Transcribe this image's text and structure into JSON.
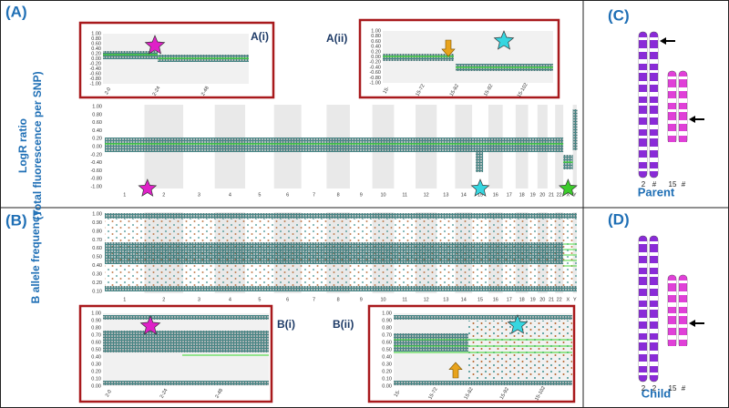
{
  "panel_a": {
    "label": "(A)",
    "y_label": [
      "LogR ratio",
      "(Total fluorescence per SNP)"
    ],
    "y_ticks": [
      "1.00",
      "0.80",
      "0.60",
      "0.40",
      "0.20",
      "0.00",
      "-0.20",
      "-0.40",
      "-0.60",
      "-0.80",
      "-1.00"
    ],
    "chromosomes": [
      "1",
      "2",
      "3",
      "4",
      "5",
      "6",
      "7",
      "8",
      "9",
      "10",
      "11",
      "12",
      "13",
      "14",
      "15",
      "16",
      "17",
      "18",
      "19",
      "20",
      "21",
      "22",
      "X",
      "Y"
    ],
    "inset_1": {
      "label": "A(i)",
      "y_ticks": [
        "1.00",
        "0.80",
        "0.60",
        "0.40",
        "0.20",
        "0.00",
        "-0.20",
        "-0.40",
        "-0.60",
        "-0.80",
        "-1.00"
      ],
      "x_ticks": [
        "2-0",
        "2-24",
        "2-48"
      ]
    },
    "inset_2": {
      "label": "A(ii)",
      "y_ticks": [
        "1.00",
        "0.80",
        "0.60",
        "0.40",
        "0.20",
        "0.00",
        "-0.20",
        "-0.40",
        "-0.60",
        "-0.80",
        "-1.00"
      ],
      "x_ticks": [
        "15-",
        "15-72",
        "15-82",
        "15-92",
        "15-102"
      ]
    }
  },
  "panel_b": {
    "label": "(B)",
    "y_label": "B allele frequency",
    "y_ticks": [
      "1.00",
      "0.90",
      "0.80",
      "0.70",
      "0.60",
      "0.50",
      "0.40",
      "0.30",
      "0.20",
      "0.10"
    ],
    "chromosomes": [
      "1",
      "2",
      "3",
      "4",
      "5",
      "6",
      "7",
      "8",
      "9",
      "10",
      "11",
      "12",
      "13",
      "14",
      "15",
      "16",
      "17",
      "18",
      "19",
      "20",
      "21",
      "22",
      "X",
      "Y"
    ],
    "inset_1": {
      "label": "B(i)",
      "y_ticks": [
        "1.00",
        "0.90",
        "0.80",
        "0.70",
        "0.60",
        "0.50",
        "0.40",
        "0.30",
        "0.20",
        "0.10",
        "0.00"
      ],
      "x_ticks": [
        "2-0",
        "2-24",
        "2-48"
      ]
    },
    "inset_2": {
      "label": "B(ii)",
      "y_ticks": [
        "1.00",
        "0.90",
        "0.80",
        "0.70",
        "0.60",
        "0.50",
        "0.40",
        "0.30",
        "0.20",
        "0.10",
        "0.00"
      ],
      "x_ticks": [
        "15-",
        "15-72",
        "15-82",
        "15-92",
        "15-102"
      ]
    }
  },
  "panel_c": {
    "label": "(C)",
    "chromosome_labels": [
      "2",
      "#",
      "15",
      "#"
    ],
    "caption": "Parent"
  },
  "panel_d": {
    "label": "(D)",
    "chromosome_labels": [
      "2",
      "2",
      "15",
      "#"
    ],
    "caption": "Child"
  }
}
